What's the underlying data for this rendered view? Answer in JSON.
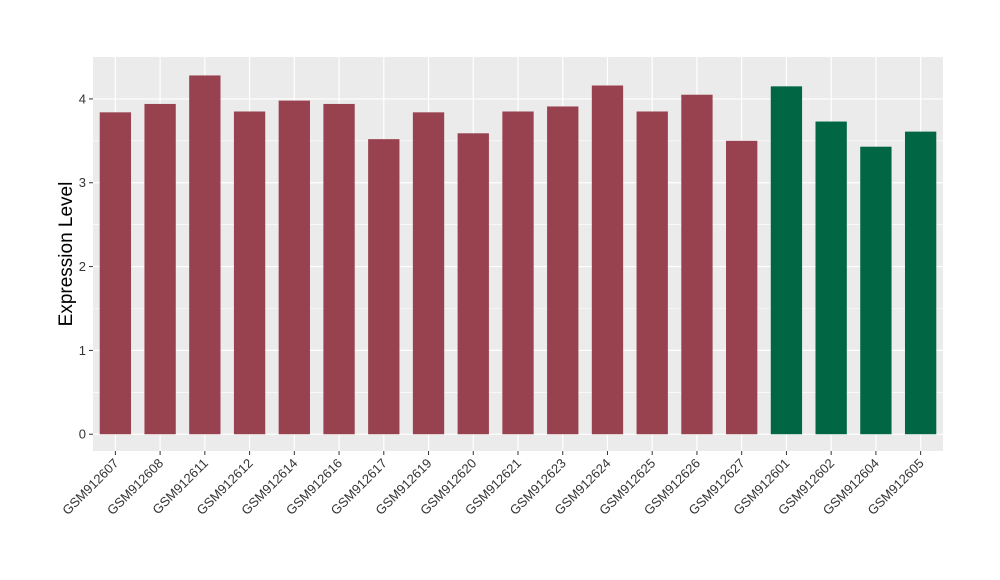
{
  "chart_data": {
    "type": "bar",
    "title": "",
    "xlabel": "",
    "ylabel": "Expression Level",
    "ylim": [
      -0.2,
      4.5
    ],
    "yticks": [
      0,
      1,
      2,
      3,
      4
    ],
    "grid": true,
    "categories": [
      "GSM912607",
      "GSM912608",
      "GSM912611",
      "GSM912612",
      "GSM912614",
      "GSM912616",
      "GSM912617",
      "GSM912619",
      "GSM912620",
      "GSM912621",
      "GSM912623",
      "GSM912624",
      "GSM912625",
      "GSM912626",
      "GSM912627",
      "GSM912601",
      "GSM912602",
      "GSM912604",
      "GSM912605"
    ],
    "values": [
      3.84,
      3.94,
      4.28,
      3.85,
      3.98,
      3.94,
      3.52,
      3.84,
      3.59,
      3.85,
      3.91,
      4.16,
      3.85,
      4.05,
      3.5,
      4.15,
      3.73,
      3.43,
      3.61
    ],
    "groups": [
      "a",
      "a",
      "a",
      "a",
      "a",
      "a",
      "a",
      "a",
      "a",
      "a",
      "a",
      "a",
      "a",
      "a",
      "a",
      "b",
      "b",
      "b",
      "b"
    ],
    "colors": {
      "a": "#99424f",
      "b": "#006644"
    },
    "panel_background": "#ebebeb",
    "grid_color": "#ffffff"
  }
}
